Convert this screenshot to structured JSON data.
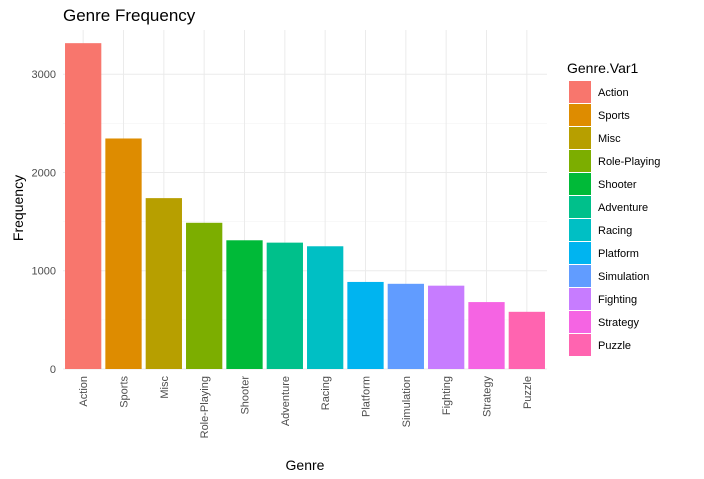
{
  "chart_data": {
    "type": "bar",
    "title": "Genre Frequency",
    "xlabel": "Genre",
    "ylabel": "Frequency",
    "ylim": [
      0,
      3450
    ],
    "yticks": [
      "0",
      "1000",
      "2000",
      "3000"
    ],
    "ytick_values": [
      0,
      1000,
      2000,
      3000
    ],
    "categories": [
      "Action",
      "Sports",
      "Misc",
      "Role-Playing",
      "Shooter",
      "Adventure",
      "Racing",
      "Platform",
      "Simulation",
      "Fighting",
      "Strategy",
      "Puzzle"
    ],
    "values": [
      3316,
      2346,
      1739,
      1488,
      1310,
      1286,
      1249,
      886,
      867,
      848,
      681,
      582
    ],
    "colors": [
      "#F8766D",
      "#DE8C00",
      "#B79F00",
      "#7CAE00",
      "#00BA38",
      "#00C08B",
      "#00BFC4",
      "#00B4F0",
      "#619CFF",
      "#C77CFF",
      "#F564E3",
      "#FF64B0"
    ],
    "legend": {
      "title": "Genre.Var1",
      "position": "right"
    },
    "grid": true
  }
}
